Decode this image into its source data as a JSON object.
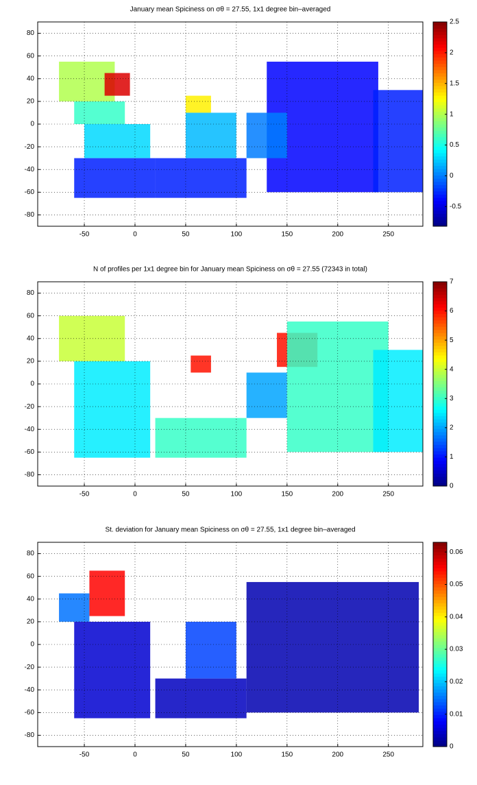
{
  "chart_data": [
    {
      "type": "heatmap",
      "title": "January mean Spiciness on σθ = 27.55, 1x1 degree bin–averaged",
      "xlim": [
        -96,
        284
      ],
      "ylim": [
        -90,
        90
      ],
      "xticks": [
        -50,
        0,
        50,
        100,
        150,
        200,
        250
      ],
      "yticks": [
        -80,
        -60,
        -40,
        -20,
        0,
        20,
        40,
        60,
        80
      ],
      "clim": [
        -0.82,
        2.5
      ],
      "cticks": [
        -0.5,
        0,
        0.5,
        1,
        1.5,
        2,
        2.5
      ],
      "grid": true,
      "cells": [
        [
          -75,
          -20,
          20,
          55,
          1.0
        ],
        [
          -30,
          -5,
          25,
          45,
          2.2
        ],
        [
          -60,
          -10,
          0,
          20,
          0.6
        ],
        [
          -50,
          15,
          -30,
          0,
          0.3
        ],
        [
          -60,
          20,
          -65,
          -30,
          -0.3
        ],
        [
          20,
          110,
          -65,
          -30,
          -0.3
        ],
        [
          50,
          75,
          10,
          25,
          1.3
        ],
        [
          50,
          100,
          -30,
          10,
          0.2
        ],
        [
          130,
          240,
          -60,
          55,
          -0.4
        ],
        [
          110,
          150,
          -30,
          10,
          0.0
        ],
        [
          235,
          284,
          -60,
          30,
          -0.3
        ]
      ]
    },
    {
      "type": "heatmap",
      "title": "N of profiles per 1x1 degree bin for January mean Spiciness on σθ = 27.55 (72343 in total)",
      "xlim": [
        -96,
        284
      ],
      "ylim": [
        -90,
        90
      ],
      "xticks": [
        -50,
        0,
        50,
        100,
        150,
        200,
        250
      ],
      "yticks": [
        -80,
        -60,
        -40,
        -20,
        0,
        20,
        40,
        60,
        80
      ],
      "clim": [
        0,
        7
      ],
      "cticks": [
        0,
        1,
        2,
        3,
        4,
        5,
        6,
        7
      ],
      "grid": true,
      "cells": [
        [
          -75,
          -10,
          20,
          60,
          4
        ],
        [
          -60,
          15,
          -65,
          20,
          2.5
        ],
        [
          20,
          110,
          -65,
          -30,
          3
        ],
        [
          55,
          75,
          10,
          25,
          6
        ],
        [
          110,
          150,
          -30,
          10,
          2
        ],
        [
          140,
          180,
          15,
          45,
          6
        ],
        [
          150,
          250,
          -60,
          55,
          3
        ],
        [
          235,
          284,
          -60,
          30,
          2.5
        ]
      ]
    },
    {
      "type": "heatmap",
      "title": "St. deviation for January mean Spiciness on σθ = 27.55, 1x1 degree bin–averaged",
      "xlim": [
        -96,
        284
      ],
      "ylim": [
        -90,
        90
      ],
      "xticks": [
        -50,
        0,
        50,
        100,
        150,
        200,
        250
      ],
      "yticks": [
        -80,
        -60,
        -40,
        -20,
        0,
        20,
        40,
        60,
        80
      ],
      "clim": [
        0,
        0.063
      ],
      "cticks": [
        0,
        0.01,
        0.02,
        0.03,
        0.04,
        0.05,
        0.06
      ],
      "grid": true,
      "cells": [
        [
          -45,
          -10,
          25,
          65,
          0.055
        ],
        [
          -75,
          -45,
          20,
          45,
          0.015
        ],
        [
          -60,
          15,
          -65,
          20,
          0.005
        ],
        [
          20,
          110,
          -65,
          -30,
          0.004
        ],
        [
          50,
          100,
          -30,
          20,
          0.012
        ],
        [
          110,
          280,
          -60,
          55,
          0.003
        ]
      ]
    }
  ]
}
